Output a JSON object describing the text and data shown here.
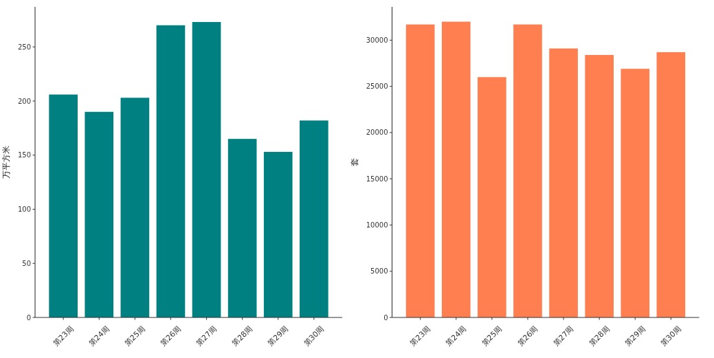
{
  "chart_data": [
    {
      "type": "bar",
      "categories": [
        "第23周",
        "第24周",
        "第25周",
        "第26周",
        "第27周",
        "第28周",
        "第29周",
        "第30周"
      ],
      "values": [
        206,
        190,
        203,
        270,
        273,
        165,
        153,
        182
      ],
      "color": "#008080",
      "ylabel": "万平方米",
      "ylim": [
        0,
        287
      ],
      "yticks": [
        0,
        50,
        100,
        150,
        200,
        250
      ]
    },
    {
      "type": "bar",
      "categories": [
        "第23周",
        "第24周",
        "第25周",
        "第26周",
        "第27周",
        "第28周",
        "第29周",
        "第30周"
      ],
      "values": [
        31700,
        32000,
        26000,
        31700,
        29100,
        28400,
        26900,
        28700
      ],
      "color": "#ff7f50",
      "ylabel": "套",
      "ylim": [
        0,
        33600
      ],
      "yticks": [
        0,
        5000,
        10000,
        15000,
        20000,
        25000,
        30000
      ]
    }
  ]
}
